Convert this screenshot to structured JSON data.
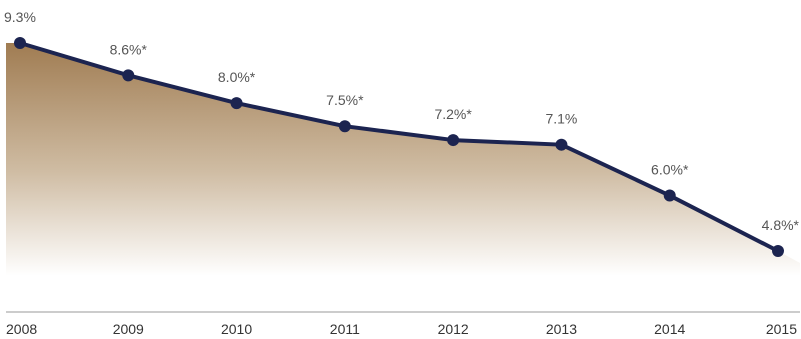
{
  "chart_data": {
    "type": "area",
    "title": "",
    "xlabel": "",
    "ylabel": "",
    "categories": [
      "2008",
      "2009",
      "2010",
      "2011",
      "2012",
      "2013",
      "2014",
      "2015"
    ],
    "values": [
      9.3,
      8.6,
      8.0,
      7.5,
      7.2,
      7.1,
      6.0,
      4.8
    ],
    "data_labels": [
      "9.3%",
      "8.6%*",
      "8.0%*",
      "7.5%*",
      "7.2%*",
      "7.1%",
      "6.0%*",
      "4.8%*"
    ],
    "ylim": [
      4.8,
      9.3
    ],
    "grid": false,
    "legend": "none",
    "colors": {
      "line": "#1c2450",
      "fill_top": "#a07c52",
      "fill_bottom": "#ffffff",
      "baseline": "#999999"
    }
  }
}
